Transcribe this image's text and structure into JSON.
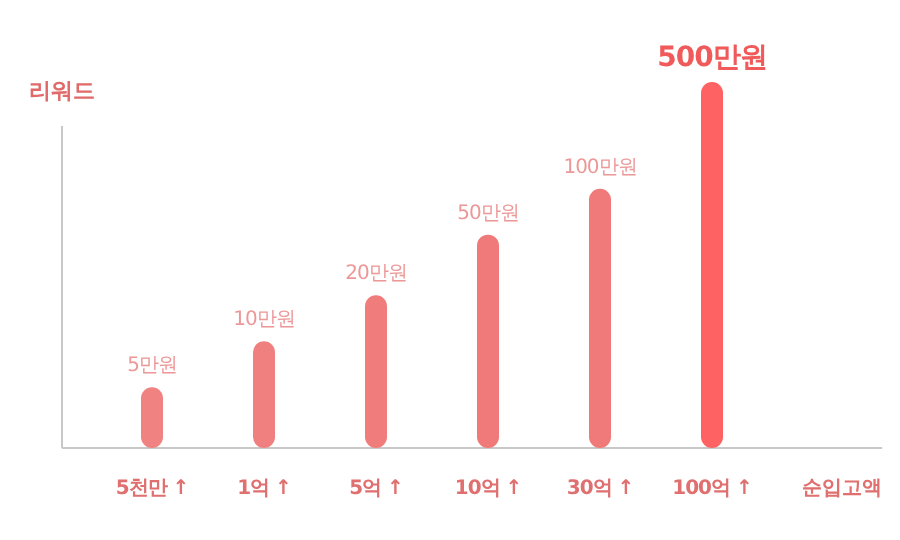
{
  "chart_data": {
    "type": "bar",
    "log": true,
    "ylabel": "리워드",
    "xlabel": "순입고액",
    "categories": [
      "5천만 ↑",
      "1억 ↑",
      "5억 ↑",
      "10억 ↑",
      "30억 ↑",
      "100억 ↑"
    ],
    "values": [
      5,
      10,
      20,
      50,
      100,
      500
    ],
    "ylim": [
      2,
      500
    ],
    "value_labels": [
      "5만원",
      "10만원",
      "20만원",
      "50만원",
      "100만원",
      "500만원"
    ],
    "colors": [
      "#f08282",
      "#f08080",
      "#f07c7c",
      "#f07a7a",
      "#f07a7a",
      "#ff6262"
    ]
  }
}
